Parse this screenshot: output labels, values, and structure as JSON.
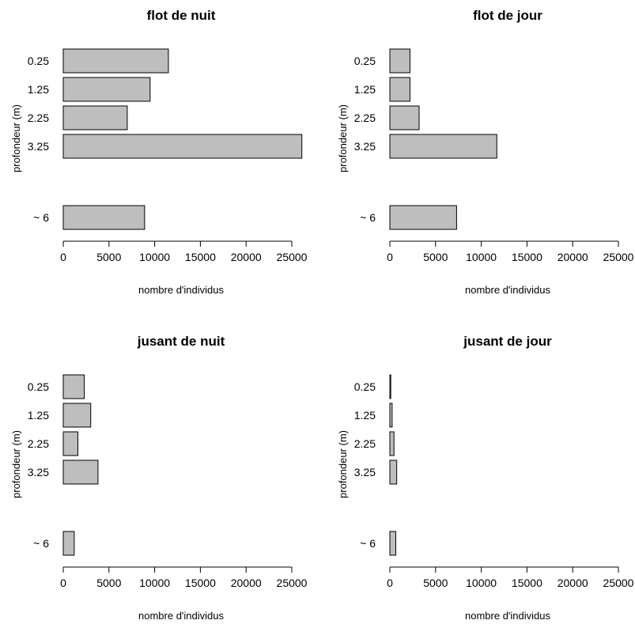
{
  "chart_data": [
    {
      "type": "bar",
      "orientation": "horizontal",
      "title": "flot de nuit",
      "xlabel": "nombre d'individus",
      "ylabel": "profondeur (m)",
      "categories": [
        "0.25",
        "1.25",
        "2.25",
        "3.25",
        "~ 6"
      ],
      "values": [
        11500,
        9500,
        7000,
        26100,
        8900
      ],
      "xlim": [
        0,
        25000
      ],
      "xticks": [
        "0",
        "5000",
        "10000",
        "15000",
        "20000",
        "25000"
      ],
      "bar_color": "#bebebe",
      "grid": false
    },
    {
      "type": "bar",
      "orientation": "horizontal",
      "title": "flot de jour",
      "xlabel": "nombre d'individus",
      "ylabel": "profondeur (m)",
      "categories": [
        "0.25",
        "1.25",
        "2.25",
        "3.25",
        "~ 6"
      ],
      "values": [
        2200,
        2200,
        3200,
        11700,
        7300
      ],
      "xlim": [
        0,
        25000
      ],
      "xticks": [
        "0",
        "5000",
        "10000",
        "15000",
        "20000",
        "25000"
      ],
      "bar_color": "#bebebe",
      "grid": false
    },
    {
      "type": "bar",
      "orientation": "horizontal",
      "title": "jusant de nuit",
      "xlabel": "nombre d'individus",
      "ylabel": "profondeur (m)",
      "categories": [
        "0.25",
        "1.25",
        "2.25",
        "3.25",
        "~ 6"
      ],
      "values": [
        2300,
        3000,
        1600,
        3800,
        1200
      ],
      "xlim": [
        0,
        25000
      ],
      "xticks": [
        "0",
        "5000",
        "10000",
        "15000",
        "20000",
        "25000"
      ],
      "bar_color": "#bebebe",
      "grid": false
    },
    {
      "type": "bar",
      "orientation": "horizontal",
      "title": "jusant de jour",
      "xlabel": "nombre d'individus",
      "ylabel": "profondeur (m)",
      "categories": [
        "0.25",
        "1.25",
        "2.25",
        "3.25",
        "~ 6"
      ],
      "values": [
        100,
        250,
        450,
        750,
        650
      ],
      "xlim": [
        0,
        25000
      ],
      "xticks": [
        "0",
        "5000",
        "10000",
        "15000",
        "20000",
        "25000"
      ],
      "bar_color": "#bebebe",
      "grid": false
    }
  ]
}
